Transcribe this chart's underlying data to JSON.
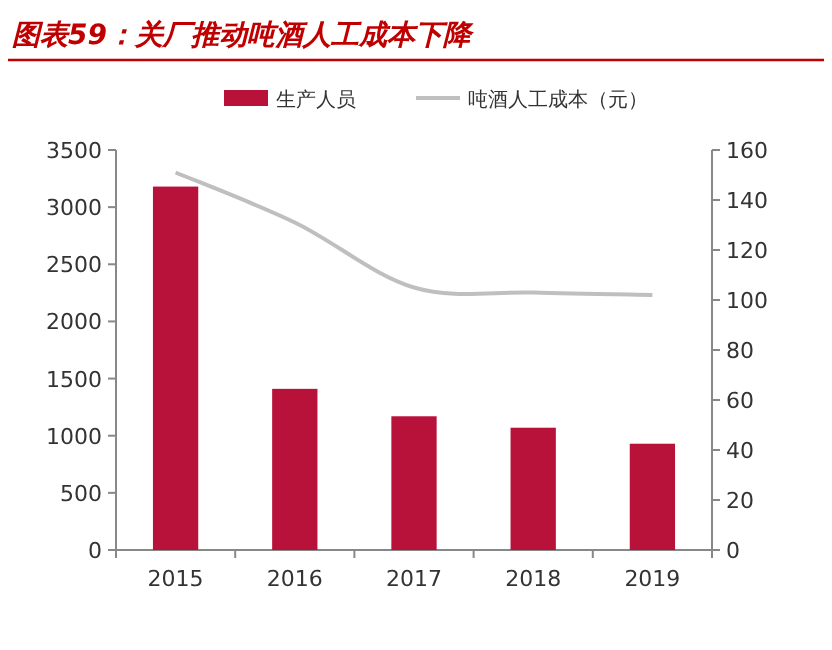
{
  "chart_data": {
    "type": "bar",
    "title": "图表59：关厂推动吨酒人工成本下降",
    "categories": [
      "2015",
      "2016",
      "2017",
      "2018",
      "2019"
    ],
    "series": [
      {
        "name": "生产人员",
        "color": "#b8123b",
        "values": [
          3180,
          1410,
          1170,
          1070,
          930
        ]
      },
      {
        "name": "吨酒人工成本（元）",
        "type": "line",
        "axis": "y2",
        "color": "#bfbfbf",
        "values": [
          151,
          131,
          105,
          103,
          102
        ]
      }
    ],
    "ylim": [
      0,
      3500
    ],
    "yticks": [
      0,
      500,
      1000,
      1500,
      2000,
      2500,
      3000,
      3500
    ],
    "y2lim": [
      0,
      160
    ],
    "y2ticks": [
      0,
      20,
      40,
      60,
      80,
      100,
      120,
      140,
      160
    ],
    "legend": "top",
    "grid": false,
    "marker": "none",
    "line_style": "solid"
  }
}
